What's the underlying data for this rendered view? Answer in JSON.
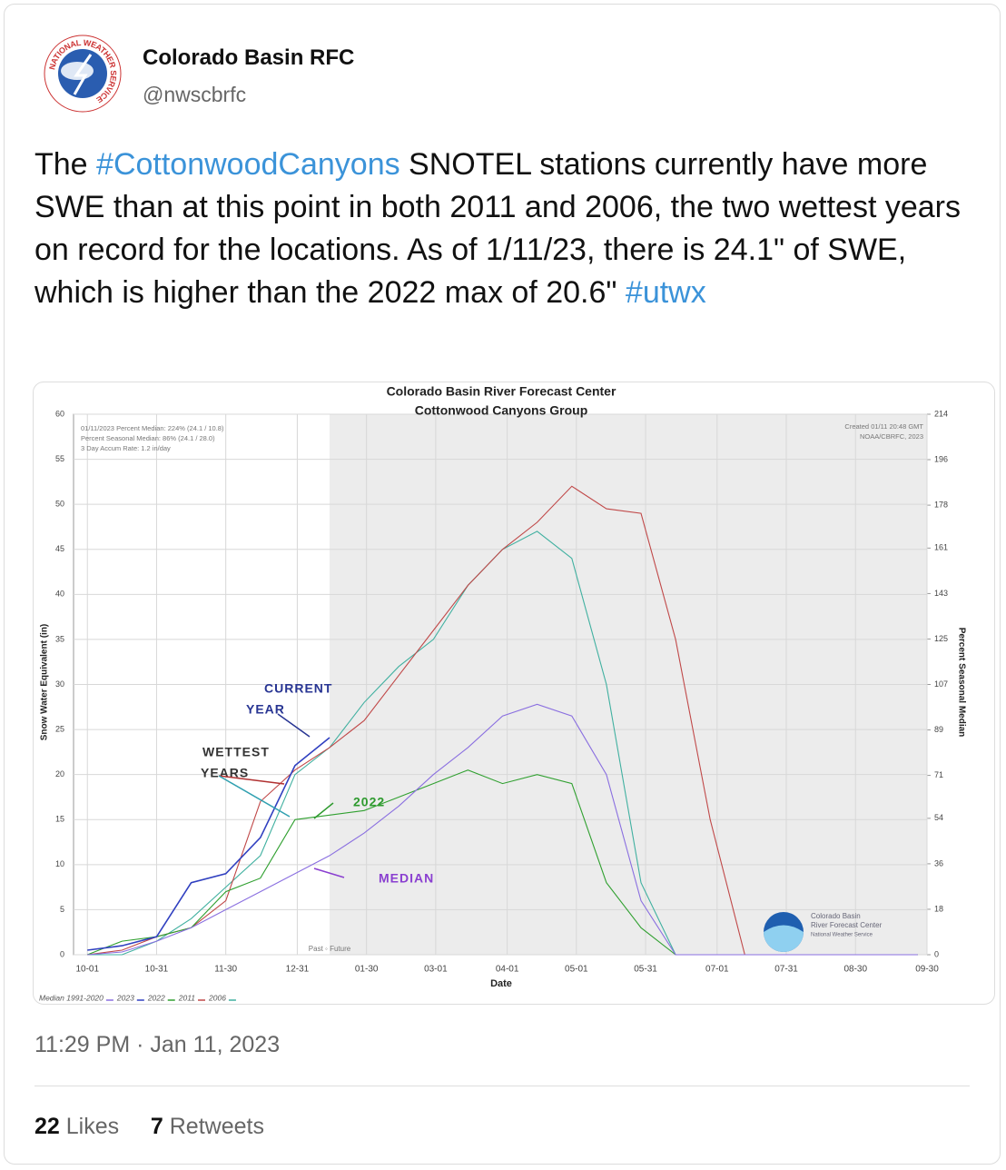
{
  "author": {
    "name": "Colorado Basin RFC",
    "handle": "@nwscbrfc",
    "logo_text": "NATIONAL WEATHER SERVICE"
  },
  "tweet": {
    "parts": [
      "The ",
      "#CottonwoodCanyons",
      " SNOTEL stations currently have more SWE than at this point in both 2011 and 2006, the two wettest years on record for the locations. As of 1/11/23, there is 24.1\" of SWE, which is higher than the 2022 max of 20.6\" ",
      "#utwx"
    ],
    "time": "11:29 PM",
    "separator": "·",
    "date": "Jan 11, 2023"
  },
  "stats": {
    "likes": "22",
    "likes_label": "Likes",
    "retweets": "7",
    "retweets_label": "Retweets"
  },
  "chart_data": {
    "type": "line",
    "title": "Colorado Basin River Forecast Center",
    "subtitle": "Cottonwood Canyons Group",
    "x_label": "Date",
    "y_label": "Snow Water Equivalent (in)",
    "y2_label": "Percent Seasonal Median",
    "info": [
      "01/11/2023 Percent Median: 224% (24.1 / 10.8)",
      "Percent Seasonal Median: 86% (24.1 / 28.0)",
      "3 Day Accum Rate: 1.2 in/day"
    ],
    "credits": [
      "Created 01/11 20:48 GMT",
      "NOAA/CBRFC, 2023"
    ],
    "logo_lines": [
      "Colorado Basin",
      "River Forecast Center",
      "National Weather Service"
    ],
    "divider_label": "Past ◦ Future",
    "annotations": [
      "CURRENT",
      "YEAR",
      "WETTEST",
      "YEARS",
      "2022",
      "MEDIAN"
    ],
    "x": [
      0,
      15,
      30,
      45,
      60,
      75,
      90,
      105,
      120,
      135,
      150,
      165,
      180,
      195,
      210,
      225,
      240,
      255,
      270,
      285,
      300,
      315,
      330,
      345,
      360
    ],
    "series": [
      {
        "name": "Median 1991-2020",
        "color": "#8a6fe0",
        "values": [
          0,
          0.3,
          1.5,
          3,
          5,
          7,
          9,
          11,
          13.5,
          16.5,
          20,
          23,
          26.5,
          27.8,
          26.5,
          20,
          6,
          0,
          0,
          0,
          0,
          0,
          0,
          0,
          0
        ]
      },
      {
        "name": "2023",
        "color": "#3040c0",
        "values": [
          0.5,
          1,
          2,
          8,
          9,
          13,
          21,
          24.1,
          null,
          null,
          null,
          null,
          null,
          null,
          null,
          null,
          null,
          null,
          null,
          null,
          null,
          null,
          null,
          null,
          null
        ]
      },
      {
        "name": "2022",
        "color": "#30a030",
        "values": [
          0,
          1.5,
          2,
          3,
          7,
          8.5,
          15,
          15.5,
          16,
          17.5,
          19,
          20.5,
          19,
          20,
          19,
          8,
          3,
          0,
          0,
          0,
          0,
          0,
          0,
          0,
          0
        ]
      },
      {
        "name": "2011",
        "color": "#c04848",
        "values": [
          0,
          0.5,
          2,
          3,
          6,
          17,
          20.5,
          23,
          26,
          31,
          36,
          41,
          45,
          48,
          52,
          49.5,
          49,
          35,
          15,
          0,
          0,
          0,
          0,
          0,
          0
        ]
      },
      {
        "name": "2006",
        "color": "#40b0a0",
        "values": [
          0,
          0,
          1.5,
          4,
          7.5,
          11,
          20,
          23,
          28,
          32,
          35,
          41,
          45,
          47,
          44,
          30,
          8,
          0,
          0,
          0,
          0,
          0,
          0,
          0,
          0
        ]
      }
    ],
    "xlim": [
      -6,
      364
    ],
    "xticks": [
      {
        "value": 0,
        "label": "10-01"
      },
      {
        "value": 30,
        "label": "10-31"
      },
      {
        "value": 60,
        "label": "11-30"
      },
      {
        "value": 91,
        "label": "12-31"
      },
      {
        "value": 121,
        "label": "01-30"
      },
      {
        "value": 151,
        "label": "03-01"
      },
      {
        "value": 182,
        "label": "04-01"
      },
      {
        "value": 212,
        "label": "05-01"
      },
      {
        "value": 242,
        "label": "05-31"
      },
      {
        "value": 273,
        "label": "07-01"
      },
      {
        "value": 303,
        "label": "07-31"
      },
      {
        "value": 333,
        "label": "08-30"
      },
      {
        "value": 364,
        "label": "09-30"
      }
    ],
    "ylim": [
      0,
      60
    ],
    "yticks": [
      0,
      5,
      10,
      15,
      20,
      25,
      30,
      35,
      40,
      45,
      50,
      55,
      60
    ],
    "y2lim": [
      0,
      214
    ],
    "y2ticks": [
      0,
      18,
      36,
      54,
      71,
      89,
      107,
      125,
      143,
      161,
      178,
      196,
      214
    ],
    "grid": true
  }
}
